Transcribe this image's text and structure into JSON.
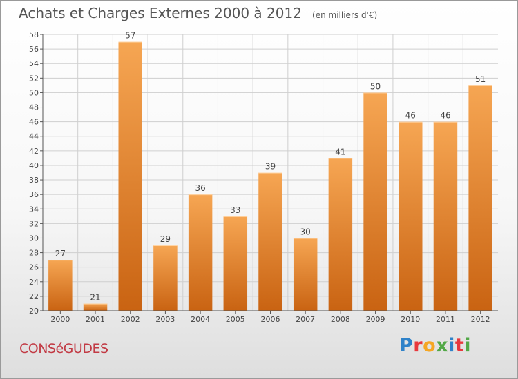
{
  "header": {
    "title": "Achats et Charges Externes 2000 à 2012",
    "unit": "(en milliers d'€)"
  },
  "footer": {
    "commune": "CONSéGUDES",
    "brand": "Proxiti",
    "brand_colors": [
      "#2f82c9",
      "#e8383d",
      "#f5a623",
      "#52a847",
      "#2f82c9",
      "#e8383d",
      "#52a847"
    ]
  },
  "colors": {
    "bar_top": "#f6a653",
    "bar_bottom": "#c96312",
    "grid": "#cfcfcf",
    "axis": "#555555"
  },
  "chart_data": {
    "type": "bar",
    "categories": [
      "2000",
      "2001",
      "2002",
      "2003",
      "2004",
      "2005",
      "2006",
      "2007",
      "2008",
      "2009",
      "2010",
      "2011",
      "2012"
    ],
    "values": [
      27,
      21,
      57,
      29,
      36,
      33,
      39,
      30,
      41,
      50,
      46,
      46,
      51
    ],
    "ylim": [
      20,
      58
    ],
    "ytick_step": 2,
    "grid": true,
    "data_labels": true,
    "title": "Achats et Charges Externes 2000 à 2012",
    "xlabel": "",
    "ylabel": ""
  }
}
